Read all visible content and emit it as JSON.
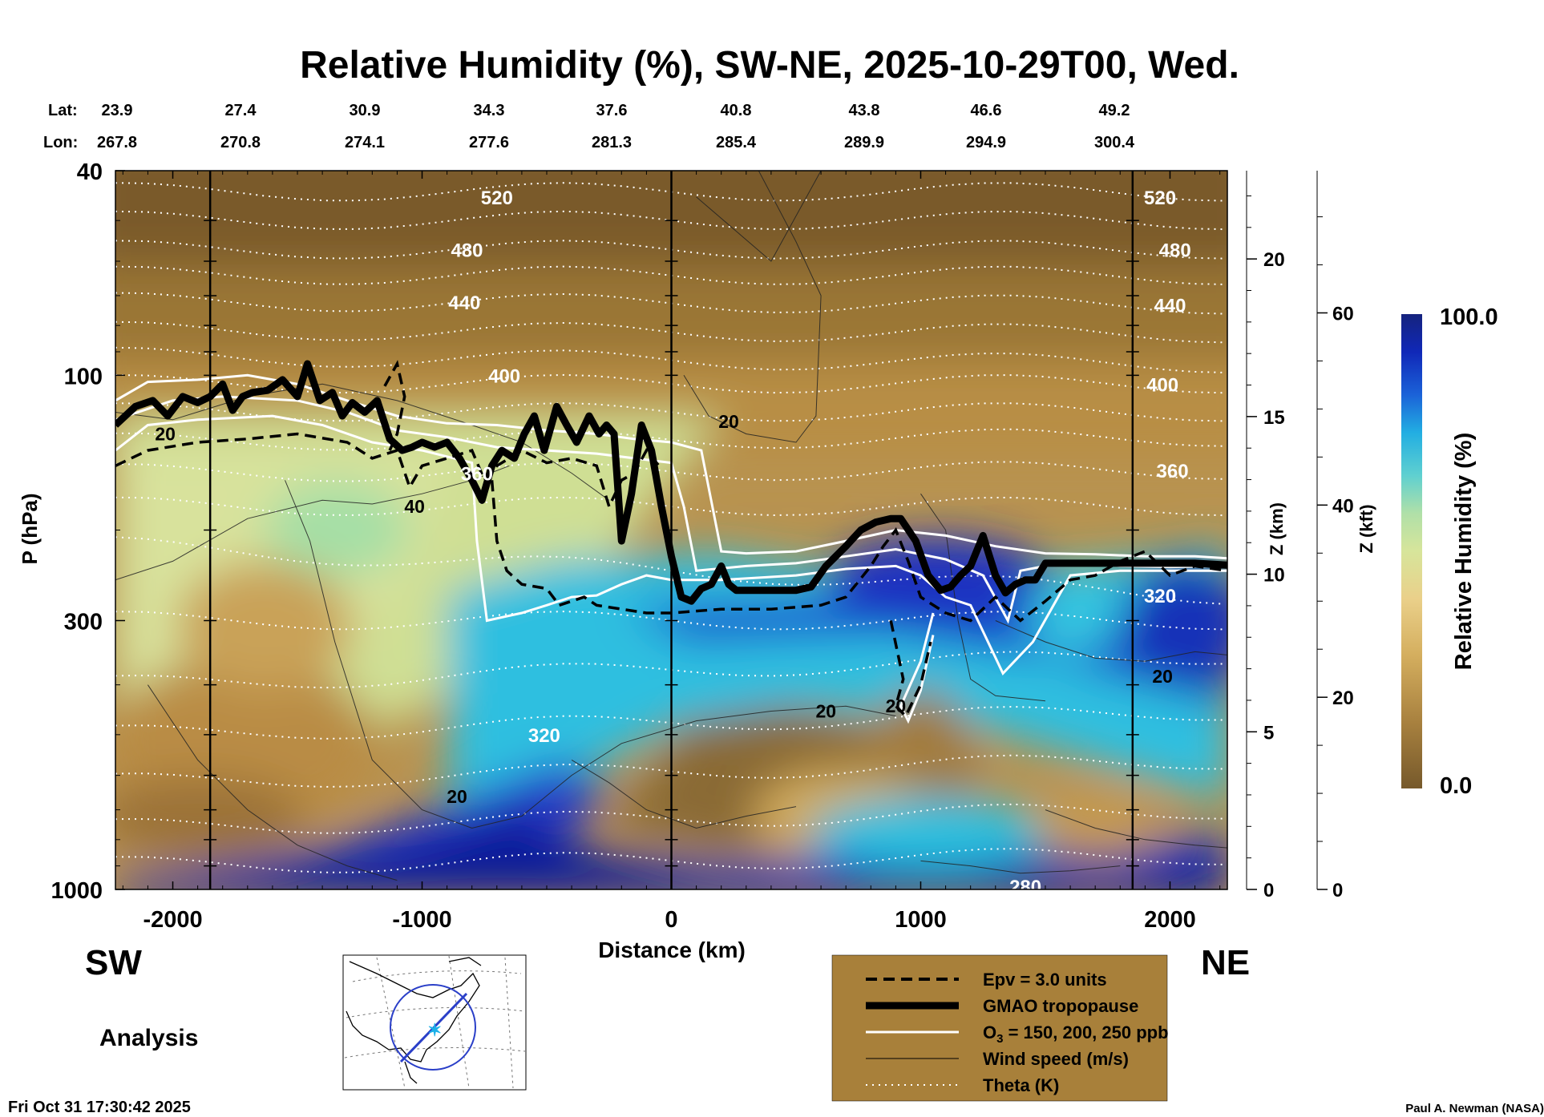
{
  "chart_data": {
    "type": "heatmap",
    "title": "Relative Humidity (%), SW-NE, 2025-10-29T00, Wed.",
    "xlabel": "Distance (km)",
    "ylabel": "P (hPa)",
    "z_km_label": "Z (km)",
    "z_kft_label": "Z (kft)",
    "colorbar_label": "Relative Humidity (%)",
    "colorbar_range": [
      0.0,
      100.0
    ],
    "colorbar_min_label": "0.0",
    "colorbar_max_label": "100.0",
    "x_range": [
      -2230,
      2230
    ],
    "y_range_hpa": [
      1000,
      40
    ],
    "x_ticks": [
      "-2000",
      "-1000",
      "0",
      "1000",
      "2000"
    ],
    "x_tick_values": [
      -2000,
      -1000,
      0,
      1000,
      2000
    ],
    "y_ticks": [
      "40",
      "100",
      "300",
      "1000"
    ],
    "y_tick_values": [
      40,
      100,
      300,
      1000
    ],
    "z_km_ticks": [
      "0",
      "5",
      "10",
      "15",
      "20"
    ],
    "z_km_values": [
      0,
      5,
      10,
      15,
      20
    ],
    "z_kft_ticks": [
      "0",
      "20",
      "40",
      "60"
    ],
    "z_kft_values": [
      0,
      20,
      40,
      60
    ],
    "lat_label": "Lat:",
    "lon_label": "Lon:",
    "lat": [
      "23.9",
      "27.4",
      "30.9",
      "34.3",
      "37.6",
      "40.8",
      "43.8",
      "46.6",
      "49.2"
    ],
    "lon": [
      "267.8",
      "270.8",
      "274.1",
      "277.6",
      "281.3",
      "285.4",
      "289.9",
      "294.9",
      "300.4"
    ],
    "theta_labels": [
      {
        "text": "520",
        "x": -700,
        "p": 45
      },
      {
        "text": "480",
        "x": -820,
        "p": 57
      },
      {
        "text": "440",
        "x": -830,
        "p": 72
      },
      {
        "text": "400",
        "x": -670,
        "p": 100
      },
      {
        "text": "360",
        "x": -780,
        "p": 155
      },
      {
        "text": "320",
        "x": -510,
        "p": 500
      },
      {
        "text": "520",
        "x": 1960,
        "p": 45
      },
      {
        "text": "480",
        "x": 2020,
        "p": 57
      },
      {
        "text": "440",
        "x": 2000,
        "p": 73
      },
      {
        "text": "400",
        "x": 1970,
        "p": 104
      },
      {
        "text": "360",
        "x": 2010,
        "p": 153
      },
      {
        "text": "320",
        "x": 1960,
        "p": 268
      },
      {
        "text": "280",
        "x": 1420,
        "p": 985
      }
    ],
    "wind_labels": [
      {
        "text": "20",
        "x": -2030,
        "p": 130
      },
      {
        "text": "40",
        "x": -1030,
        "p": 180
      },
      {
        "text": "20",
        "x": 230,
        "p": 123
      },
      {
        "text": "20",
        "x": 620,
        "p": 450
      },
      {
        "text": "20",
        "x": 900,
        "p": 440
      },
      {
        "text": "20",
        "x": 1970,
        "p": 385
      },
      {
        "text": "20",
        "x": -860,
        "p": 660
      }
    ],
    "tropopause": {
      "x": [
        -2230,
        -2150,
        -2080,
        -2020,
        -1960,
        -1900,
        -1850,
        -1800,
        -1760,
        -1720,
        -1680,
        -1620,
        -1560,
        -1500,
        -1460,
        -1410,
        -1360,
        -1320,
        -1280,
        -1230,
        -1180,
        -1130,
        -1080,
        -1040,
        -1000,
        -950,
        -900,
        -850,
        -800,
        -760,
        -720,
        -680,
        -630,
        -590,
        -550,
        -510,
        -460,
        -420,
        -380,
        -330,
        -290,
        -260,
        -230,
        -200,
        -160,
        -120,
        -80,
        -40,
        0,
        40,
        80,
        120,
        160,
        200,
        230,
        260,
        300,
        400,
        500,
        560,
        620,
        700,
        760,
        820,
        880,
        920,
        980,
        1030,
        1080,
        1120,
        1160,
        1200,
        1250,
        1300,
        1340,
        1380,
        1420,
        1460,
        1500,
        1560,
        1620,
        1700,
        1800,
        1900,
        2000,
        2100,
        2230
      ],
      "p": [
        125,
        115,
        112,
        120,
        110,
        113,
        110,
        104,
        117,
        110,
        108,
        107,
        102,
        110,
        95,
        112,
        108,
        120,
        113,
        118,
        112,
        133,
        140,
        138,
        135,
        138,
        135,
        145,
        160,
        175,
        150,
        140,
        145,
        130,
        120,
        140,
        115,
        125,
        135,
        120,
        130,
        125,
        130,
        210,
        170,
        125,
        140,
        180,
        225,
        270,
        275,
        260,
        255,
        235,
        255,
        262,
        262,
        262,
        262,
        258,
        235,
        215,
        200,
        193,
        190,
        190,
        210,
        245,
        262,
        258,
        245,
        235,
        205,
        245,
        265,
        255,
        250,
        250,
        232,
        232,
        232,
        232,
        232,
        232,
        232,
        232,
        234
      ]
    },
    "colors": {
      "dry": "#6e4f22",
      "mid": "#e6c575",
      "moist": "#c9e193",
      "wet": "#34c3e0",
      "saturated": "#0d1fa0",
      "legend_bg": "#a8803a",
      "colorbar_top": "#15237e",
      "colorbar_bottom": "#76592b"
    }
  },
  "legend": {
    "items": [
      {
        "label": "Epv = 3.0 units",
        "style": "dashed"
      },
      {
        "label": "GMAO tropopause",
        "style": "thick"
      },
      {
        "label": "O",
        "sub": "3",
        "suffix": " = 150, 200, 250 ppb",
        "style": "white"
      },
      {
        "label": "Wind speed (m/s)",
        "style": "thin"
      },
      {
        "label": "Theta (K)",
        "style": "dotted"
      }
    ]
  },
  "labels": {
    "sw": "SW",
    "ne": "NE",
    "analysis": "Analysis",
    "timestamp": "Fri Oct 31 17:30:42 2025",
    "credit": "Paul A. Newman (NASA)"
  }
}
